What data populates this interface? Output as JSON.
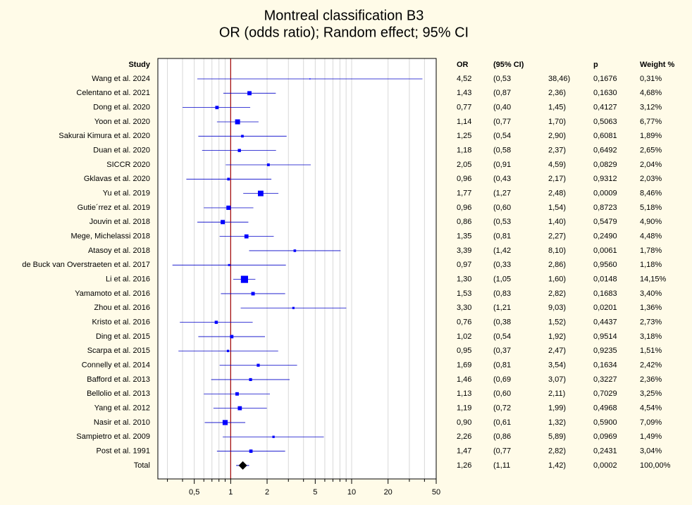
{
  "chart_data": {
    "type": "forest",
    "title": "Montreal classification B3",
    "subtitle": "OR (odds ratio); Random effect; 95% CI",
    "columns": {
      "study": "Study",
      "or": "OR",
      "ci": "(95% CI)",
      "p": "p",
      "weight": "Weight %"
    },
    "categories": [
      "Wang et al. 2024",
      "Celentano et al. 2021",
      "Dong et al. 2020",
      "Yoon et al. 2020",
      "Sakurai Kimura et al. 2020",
      "Duan et al. 2020",
      "SICCR 2020",
      "Gklavas et al. 2020",
      "Yu et al. 2019",
      "Gutie´rrez et al. 2019",
      "Jouvin et al. 2018",
      "Mege, Michelassi 2018",
      "Atasoy et al. 2018",
      "de Buck van Overstraeten et al. 2017",
      "Li et al. 2016",
      "Yamamoto et al. 2016",
      "Zhou et al. 2016",
      "Kristo et al. 2016",
      "Ding et al. 2015",
      "Scarpa et al. 2015",
      "Connelly et al. 2014",
      "Bafford et al. 2013",
      "Bellolio et al. 2013",
      "Yang et al. 2012",
      "Nasir et al. 2010",
      "Sampietro et al. 2009",
      "Post et al. 1991",
      "Total"
    ],
    "values": [
      4.52,
      1.43,
      0.77,
      1.14,
      1.25,
      1.18,
      2.05,
      0.96,
      1.77,
      0.96,
      0.86,
      1.35,
      3.39,
      0.97,
      1.3,
      1.53,
      3.3,
      0.76,
      1.02,
      0.95,
      1.69,
      1.46,
      1.13,
      1.19,
      0.9,
      2.26,
      1.47,
      1.26
    ],
    "value_labels": [
      "4,52",
      "1,43",
      "0,77",
      "1,14",
      "1,25",
      "1,18",
      "2,05",
      "0,96",
      "1,77",
      "0,96",
      "0,86",
      "1,35",
      "3,39",
      "0,97",
      "1,30",
      "1,53",
      "3,30",
      "0,76",
      "1,02",
      "0,95",
      "1,69",
      "1,46",
      "1,13",
      "1,19",
      "0,90",
      "2,26",
      "1,47",
      "1,26"
    ],
    "ci_lower": [
      0.53,
      0.87,
      0.4,
      0.77,
      0.54,
      0.58,
      0.91,
      0.43,
      1.27,
      0.6,
      0.53,
      0.81,
      1.42,
      0.33,
      1.05,
      0.83,
      1.21,
      0.38,
      0.54,
      0.37,
      0.81,
      0.69,
      0.6,
      0.72,
      0.61,
      0.86,
      0.77,
      1.11
    ],
    "ci_lower_labels": [
      "(0,53",
      "(0,87",
      "(0,40",
      "(0,77",
      "(0,54",
      "(0,58",
      "(0,91",
      "(0,43",
      "(1,27",
      "(0,60",
      "(0,53",
      "(0,81",
      "(1,42",
      "(0,33",
      "(1,05",
      "(0,83",
      "(1,21",
      "(0,38",
      "(0,54",
      "(0,37",
      "(0,81",
      "(0,69",
      "(0,60",
      "(0,72",
      "(0,61",
      "(0,86",
      "(0,77",
      "(1,11"
    ],
    "ci_upper": [
      38.46,
      2.36,
      1.45,
      1.7,
      2.9,
      2.37,
      4.59,
      2.17,
      2.48,
      1.54,
      1.4,
      2.27,
      8.1,
      2.86,
      1.6,
      2.82,
      9.03,
      1.52,
      1.92,
      2.47,
      3.54,
      3.07,
      2.11,
      1.99,
      1.32,
      5.89,
      2.82,
      1.42
    ],
    "ci_upper_labels": [
      "38,46)",
      "2,36)",
      "1,45)",
      "1,70)",
      "2,90)",
      "2,37)",
      "4,59)",
      "2,17)",
      "2,48)",
      "1,54)",
      "1,40)",
      "2,27)",
      "8,10)",
      "2,86)",
      "1,60)",
      "2,82)",
      "9,03)",
      "1,52)",
      "1,92)",
      "2,47)",
      "3,54)",
      "3,07)",
      "2,11)",
      "1,99)",
      "1,32)",
      "5,89)",
      "2,82)",
      "1,42)"
    ],
    "p": [
      0.1676,
      0.163,
      0.4127,
      0.5063,
      0.6081,
      0.6492,
      0.0829,
      0.9312,
      0.0009,
      0.8723,
      0.5479,
      0.249,
      0.0061,
      0.956,
      0.0148,
      0.1683,
      0.0201,
      0.4437,
      0.9514,
      0.9235,
      0.1634,
      0.3227,
      0.7029,
      0.4968,
      0.59,
      0.0969,
      0.2431,
      0.0002
    ],
    "p_labels": [
      "0,1676",
      "0,1630",
      "0,4127",
      "0,5063",
      "0,6081",
      "0,6492",
      "0,0829",
      "0,9312",
      "0,0009",
      "0,8723",
      "0,5479",
      "0,2490",
      "0,0061",
      "0,9560",
      "0,0148",
      "0,1683",
      "0,0201",
      "0,4437",
      "0,9514",
      "0,9235",
      "0,1634",
      "0,3227",
      "0,7029",
      "0,4968",
      "0,5900",
      "0,0969",
      "0,2431",
      "0,0002"
    ],
    "weight": [
      0.31,
      4.68,
      3.12,
      6.77,
      1.89,
      2.65,
      2.04,
      2.03,
      8.46,
      5.18,
      4.9,
      4.48,
      1.78,
      1.18,
      14.15,
      3.4,
      1.36,
      2.73,
      3.18,
      1.51,
      2.42,
      2.36,
      3.25,
      4.54,
      7.09,
      1.49,
      3.04,
      100.0
    ],
    "weight_labels": [
      "0,31%",
      "4,68%",
      "3,12%",
      "6,77%",
      "1,89%",
      "2,65%",
      "2,04%",
      "2,03%",
      "8,46%",
      "5,18%",
      "4,90%",
      "4,48%",
      "1,78%",
      "1,18%",
      "14,15%",
      "3,40%",
      "1,36%",
      "2,73%",
      "3,18%",
      "1,51%",
      "2,42%",
      "2,36%",
      "3,25%",
      "4,54%",
      "7,09%",
      "1,49%",
      "3,04%",
      "100,00%"
    ],
    "xlim": [
      0.25,
      50
    ],
    "xticks": [
      {
        "value": 0.5,
        "label": "0,5"
      },
      1,
      2,
      5,
      10,
      20,
      50
    ],
    "minor_xticks": [
      0.3,
      0.4,
      0.6,
      0.7,
      0.8,
      0.9,
      3,
      4,
      6,
      7,
      8,
      9,
      30,
      40
    ],
    "log_x": true,
    "grid": true,
    "ref_line": 1,
    "color": "#0000ff",
    "line_color": "#0000c8",
    "ref_color": "#a00000"
  }
}
